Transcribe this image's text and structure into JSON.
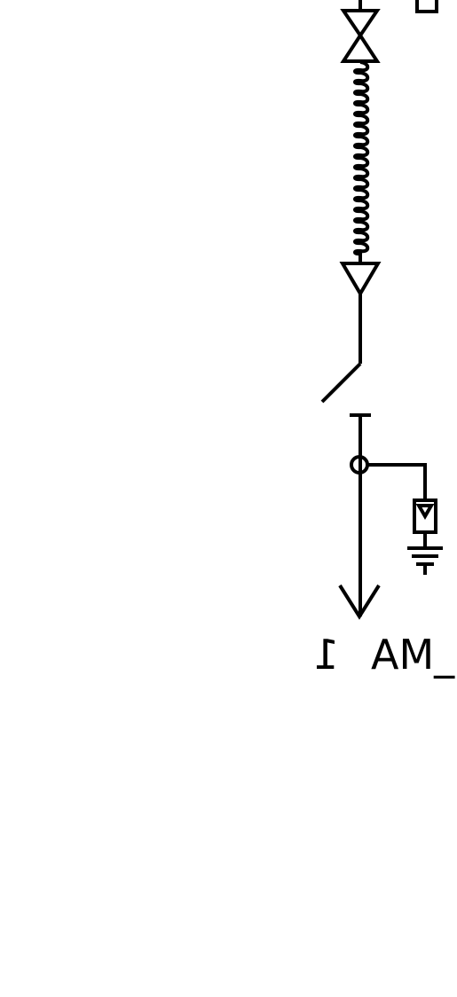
{
  "diagram": {
    "ink_color": "#000000",
    "background_color": "#ffffff",
    "feeder_label": "AM_",
    "feeder_label_mirrored_char": "1",
    "symbols": [
      "bracket-corner",
      "cable-head-triangles",
      "cable-coil",
      "cable-end-triangle",
      "disconnect-switch",
      "terminal-bar",
      "connection-node",
      "surge-arrester",
      "ground-symbol",
      "feeder-arrow"
    ]
  }
}
